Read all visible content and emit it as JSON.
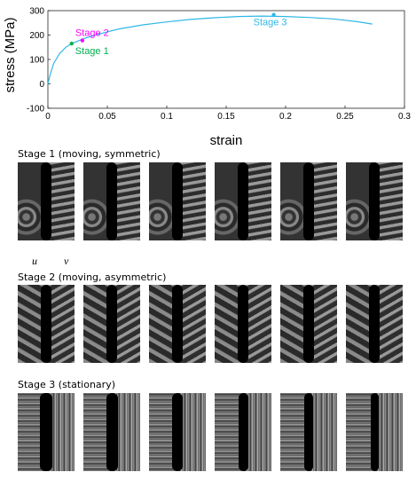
{
  "chart_data": {
    "type": "line",
    "title": "",
    "xlabel": "strain",
    "ylabel": "stress (MPa)",
    "xlim": [
      0,
      0.3
    ],
    "ylim": [
      -100,
      300
    ],
    "xticks": [
      "0",
      "0.05",
      "0.1",
      "0.15",
      "0.2",
      "0.25",
      "0.3"
    ],
    "yticks": [
      "-100",
      "0",
      "100",
      "200",
      "300"
    ],
    "x": [
      0,
      0.002,
      0.005,
      0.01,
      0.015,
      0.02,
      0.025,
      0.03,
      0.04,
      0.05,
      0.06,
      0.08,
      0.1,
      0.12,
      0.14,
      0.16,
      0.18,
      0.2,
      0.22,
      0.24,
      0.26,
      0.273
    ],
    "y": [
      0,
      40,
      85,
      125,
      150,
      165,
      175,
      185,
      200,
      213,
      225,
      242,
      254,
      264,
      271,
      276,
      278,
      276,
      272,
      266,
      255,
      245
    ],
    "grid": false,
    "annotations": [
      {
        "label": "Stage 1",
        "x": 0.02,
        "y": 165,
        "color": "#00b050"
      },
      {
        "label": "Stage 2",
        "x": 0.029,
        "y": 178,
        "color": "#ff00ff"
      },
      {
        "label": "Stage 3",
        "x": 0.19,
        "y": 283,
        "color": "#2eb8e6"
      }
    ]
  },
  "stages": [
    {
      "heading": "Stage 1 (moving, symmetric)"
    },
    {
      "heading": "Stage 2 (moving, asymmetric)"
    },
    {
      "heading": "Stage 3 (stationary)"
    }
  ],
  "fringe_labels": {
    "u": "u",
    "v": "v"
  },
  "colors": {
    "curve": "#2eb8e6",
    "stage1": "#00b050",
    "stage2": "#ff00ff",
    "stage3": "#2eb8e6"
  }
}
